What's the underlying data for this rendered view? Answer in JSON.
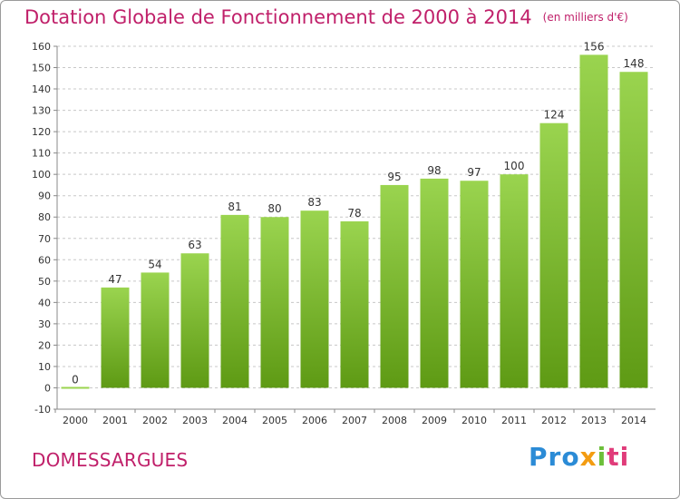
{
  "header": {
    "title": "Dotation Globale de Fonctionnement de 2000 à 2014",
    "unit_note": "(en milliers d'€)"
  },
  "footer": {
    "place_name": "DOMESSARGUES",
    "logo_text": "Proxiti"
  },
  "colors": {
    "title": "#c0206a",
    "bar_top": "#9ad44f",
    "bar_bottom": "#5e9a14",
    "grid": "#c8c8c8"
  },
  "chart_data": {
    "type": "bar",
    "title": "Dotation Globale de Fonctionnement de 2000 à 2014",
    "xlabel": "",
    "ylabel": "",
    "categories": [
      "2000",
      "2001",
      "2002",
      "2003",
      "2004",
      "2005",
      "2006",
      "2007",
      "2008",
      "2009",
      "2010",
      "2011",
      "2012",
      "2013",
      "2014"
    ],
    "values": [
      0,
      47,
      54,
      63,
      81,
      80,
      83,
      78,
      95,
      98,
      97,
      100,
      124,
      156,
      148
    ],
    "data_labels": [
      "0",
      "47",
      "54",
      "63",
      "81",
      "80",
      "83",
      "78",
      "95",
      "98",
      "97",
      "100",
      "124",
      "156",
      "148"
    ],
    "ylim": [
      -10,
      160
    ],
    "yticks": [
      -10,
      0,
      10,
      20,
      30,
      40,
      50,
      60,
      70,
      80,
      90,
      100,
      110,
      120,
      130,
      140,
      150,
      160
    ],
    "grid": true,
    "legend": "none"
  }
}
